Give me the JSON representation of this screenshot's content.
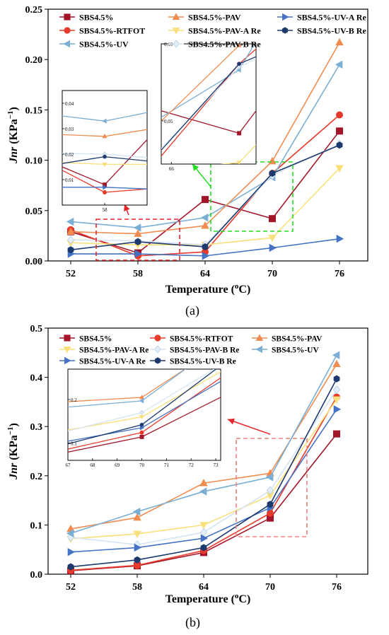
{
  "chart_data": [
    {
      "type": "line",
      "panel_label": "(a)",
      "xlabel_main": "Temperature (",
      "xlabel_sup": "o",
      "xlabel_tail": "C)",
      "ylabel_main": "Jnr",
      "ylabel_unit": " (KPa",
      "ylabel_sup": "−1",
      "ylabel_tail": ")",
      "x": [
        52,
        58,
        64,
        70,
        76
      ],
      "xticks": [
        "52",
        "58",
        "64",
        "70",
        "76"
      ],
      "ylim": [
        0,
        0.25
      ],
      "yticks": [
        "0.00",
        "0.05",
        "0.10",
        "0.15",
        "0.20",
        "0.25"
      ],
      "series": [
        {
          "name": "SBS4.5%",
          "color": "#a3162a",
          "marker": "square",
          "values": [
            0.029,
            0.008,
            0.061,
            0.042,
            0.129
          ]
        },
        {
          "name": "SBS4.5%-RTFOT",
          "color": "#e83a2a",
          "marker": "circle",
          "values": [
            0.031,
            0.005,
            0.009,
            0.087,
            0.145
          ]
        },
        {
          "name": "SBS4.5%-UV",
          "color": "#7aaed4",
          "marker": "triangle-left",
          "values": [
            0.039,
            0.033,
            0.043,
            0.083,
            0.195
          ]
        },
        {
          "name": "SBS4.5%-PAV",
          "color": "#f08c50",
          "marker": "triangle-up",
          "values": [
            0.029,
            0.027,
            0.035,
            0.099,
            0.217
          ]
        },
        {
          "name": "SBS4.5%-PAV-A Re",
          "color": "#f9e07a",
          "marker": "triangle-down",
          "values": [
            0.018,
            0.016,
            0.016,
            0.023,
            0.092
          ]
        },
        {
          "name": "SBS4.5%-PAV-B Re",
          "color": "#e3eef8",
          "marker": "diamond",
          "values": [
            0.021,
            0.02,
            0.016,
            0.085,
            0.116
          ]
        },
        {
          "name": "SBS4.5%-UV-A Re",
          "color": "#4472c4",
          "marker": "triangle-right",
          "values": [
            0.007,
            0.007,
            0.005,
            0.013,
            0.022
          ]
        },
        {
          "name": "SBS4.5%-UV-B Re",
          "color": "#1d3a6e",
          "marker": "hexagon",
          "values": [
            0.011,
            0.019,
            0.014,
            0.087,
            0.115
          ]
        }
      ],
      "legend_order": [
        0,
        3,
        6,
        1,
        4,
        7,
        2,
        5
      ],
      "insets": [
        {
          "xticks": [
            "58"
          ],
          "yticks": [
            "0.01",
            "0.02",
            "0.03",
            "0.04"
          ],
          "xrange": [
            56,
            60
          ],
          "ylim": [
            0,
            0.045
          ],
          "tick_x": [
            58
          ],
          "tick_y": [
            0.01,
            0.02,
            0.03,
            0.04
          ]
        },
        {
          "xticks": [
            "66"
          ],
          "yticks": [
            "0.05",
            "0.10"
          ],
          "xrange": [
            65.4,
            71
          ],
          "ylim": [
            0.022,
            0.1
          ],
          "tick_x": [
            66
          ],
          "tick_y": [
            0.05,
            0.1
          ]
        }
      ]
    },
    {
      "type": "line",
      "panel_label": "(b)",
      "xlabel_main": "Temperature (",
      "xlabel_sup": "o",
      "xlabel_tail": "C)",
      "ylabel_main": "Jnr",
      "ylabel_unit": " (KPa",
      "ylabel_sup": "−1",
      "ylabel_tail": ")",
      "x": [
        52,
        58,
        64,
        70,
        76
      ],
      "xticks": [
        "52",
        "58",
        "64",
        "70",
        "76"
      ],
      "ylim": [
        0,
        0.5
      ],
      "yticks": [
        "0.0",
        "0.1",
        "0.2",
        "0.3",
        "0.4",
        "0.5"
      ],
      "series": [
        {
          "name": "SBS4.5%",
          "color": "#a3162a",
          "marker": "square",
          "values": [
            0.007,
            0.017,
            0.044,
            0.114,
            0.285
          ]
        },
        {
          "name": "SBS4.5%-RTFOT",
          "color": "#e83a2a",
          "marker": "circle",
          "values": [
            0.008,
            0.018,
            0.048,
            0.124,
            0.36
          ]
        },
        {
          "name": "SBS4.5%-PAV",
          "color": "#f08c50",
          "marker": "triangle-up",
          "values": [
            0.092,
            0.115,
            0.185,
            0.205,
            0.427
          ]
        },
        {
          "name": "SBS4.5%-PAV-A Re",
          "color": "#f9e07a",
          "marker": "triangle-down",
          "values": [
            0.072,
            0.082,
            0.1,
            0.16,
            0.355
          ]
        },
        {
          "name": "SBS4.5%-PAV-B Re",
          "color": "#e3eef8",
          "marker": "diamond",
          "values": [
            0.075,
            0.06,
            0.085,
            0.17,
            0.375
          ]
        },
        {
          "name": "SBS4.5%-UV",
          "color": "#7aaed4",
          "marker": "triangle-left",
          "values": [
            0.083,
            0.127,
            0.168,
            0.197,
            0.445
          ]
        },
        {
          "name": "SBS4.5%-UV-A Re",
          "color": "#4472c4",
          "marker": "triangle-right",
          "values": [
            0.045,
            0.054,
            0.073,
            0.135,
            0.335
          ]
        },
        {
          "name": "SBS4.5%-UV-B Re",
          "color": "#1d3a6e",
          "marker": "hexagon",
          "values": [
            0.015,
            0.029,
            0.054,
            0.142,
            0.397
          ]
        }
      ],
      "legend_order": [
        0,
        1,
        2,
        3,
        4,
        5,
        6,
        7
      ],
      "insets": [
        {
          "xticks": [
            "67",
            "68",
            "69",
            "70",
            "71",
            "72",
            "73"
          ],
          "yticks": [
            "0.1",
            "0.2"
          ],
          "xrange": [
            67,
            73.2
          ],
          "ylim": [
            0.06,
            0.27
          ],
          "tick_x": [
            67,
            68,
            69,
            70,
            71,
            72,
            73
          ],
          "tick_y": [
            0.1,
            0.2
          ]
        }
      ]
    }
  ]
}
